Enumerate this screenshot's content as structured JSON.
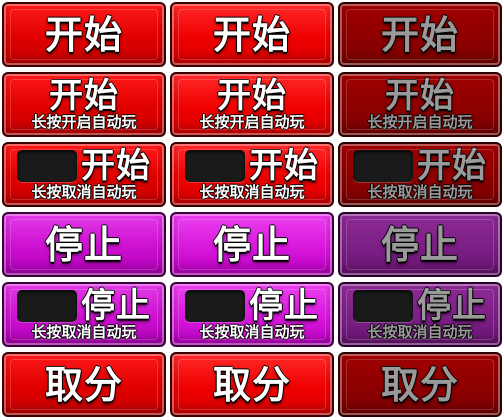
{
  "buttons": {
    "start_label": "开始",
    "stop_label": "停止",
    "cancel_label": "取分",
    "long_press_auto": "长按开启自动玩",
    "long_press_cancel": "长按取消自动玩"
  }
}
